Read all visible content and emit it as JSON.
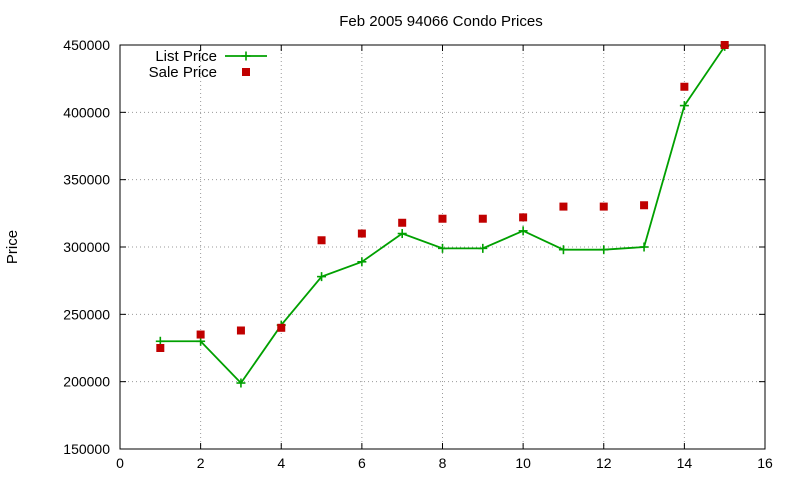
{
  "chart_data": {
    "type": "line",
    "title": "Feb 2005 94066 Condo Prices",
    "xlabel": "",
    "ylabel": "Price",
    "xlim": [
      0,
      16
    ],
    "ylim": [
      150000,
      450000
    ],
    "xticks": [
      0,
      2,
      4,
      6,
      8,
      10,
      12,
      14,
      16
    ],
    "yticks": [
      150000,
      200000,
      250000,
      300000,
      350000,
      400000,
      450000
    ],
    "x_tick_labels": [
      "0",
      "2",
      "4",
      "6",
      "8",
      "10",
      "12",
      "14",
      "16"
    ],
    "y_tick_labels": [
      "150000",
      "200000",
      "250000",
      "300000",
      "350000",
      "400000",
      "450000"
    ],
    "grid": true,
    "legend_position": "top-left",
    "series": [
      {
        "name": "List Price",
        "style": "linespoints",
        "marker": "plus",
        "color": "#00a000",
        "x": [
          1,
          2,
          3,
          4,
          5,
          6,
          7,
          8,
          9,
          10,
          11,
          12,
          13,
          14,
          15
        ],
        "values": [
          230000,
          230000,
          199000,
          242000,
          278000,
          289000,
          310000,
          299000,
          299000,
          312000,
          298000,
          298000,
          300000,
          405000,
          449000
        ]
      },
      {
        "name": "Sale Price",
        "style": "points",
        "marker": "square",
        "color": "#c00000",
        "x": [
          1,
          2,
          3,
          4,
          5,
          6,
          7,
          8,
          9,
          10,
          11,
          12,
          13,
          14,
          15
        ],
        "values": [
          225000,
          235000,
          238000,
          240000,
          305000,
          310000,
          318000,
          321000,
          321000,
          322000,
          330000,
          330000,
          331000,
          419000,
          450000
        ]
      }
    ]
  }
}
